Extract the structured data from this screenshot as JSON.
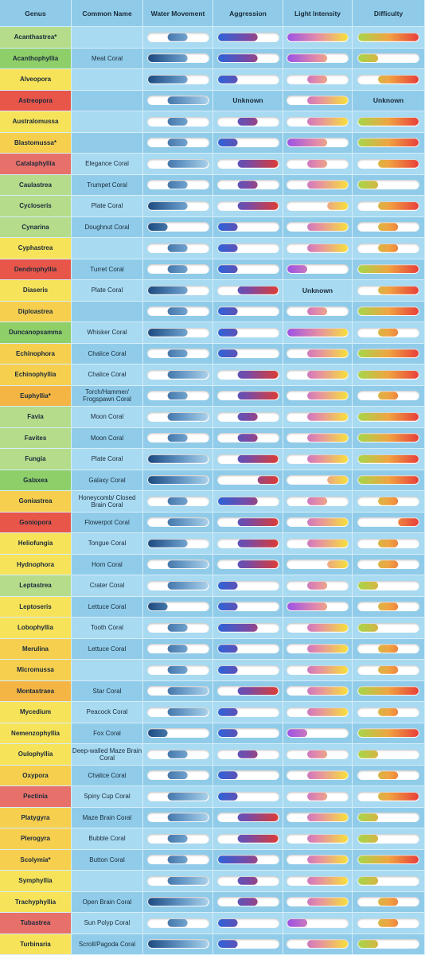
{
  "table": {
    "columns": [
      "Genus",
      "Common Name",
      "Water Movement",
      "Aggression",
      "Light Intensity",
      "Difficulty"
    ],
    "rows": [
      {
        "genus": "Acanthastrea*",
        "color": "#b5dc8a",
        "water": [
          33,
          66
        ],
        "aggression": [
          0,
          66
        ],
        "light": [
          0,
          100
        ],
        "difficulty": [
          0,
          100
        ]
      },
      {
        "genus": "Acanthophyllia",
        "color": "#8fcf6a",
        "common": "Meat Coral",
        "water": [
          0,
          66
        ],
        "aggression": [
          0,
          66
        ],
        "light": [
          0,
          66
        ],
        "difficulty": [
          0,
          33
        ]
      },
      {
        "genus": "Alveopora",
        "color": "#f7e35a",
        "water": [
          0,
          66
        ],
        "aggression": [
          0,
          33
        ],
        "light": [
          33,
          66
        ],
        "difficulty": [
          33,
          100
        ]
      },
      {
        "genus": "Astreopora",
        "color": "#e8564a",
        "water": [
          33,
          100
        ],
        "aggression": "Unknown",
        "light": [
          33,
          100
        ],
        "difficulty": "Unknown"
      },
      {
        "genus": "Australomussa",
        "color": "#f7e35a",
        "water": [
          33,
          66
        ],
        "aggression": [
          33,
          66
        ],
        "light": [
          33,
          100
        ],
        "difficulty": [
          0,
          100
        ]
      },
      {
        "genus": "Blastomussa*",
        "color": "#f6cf4f",
        "water": [
          33,
          66
        ],
        "aggression": [
          0,
          33
        ],
        "light": [
          0,
          66
        ],
        "difficulty": [
          0,
          100
        ]
      },
      {
        "genus": "Catalaphyllia",
        "color": "#e8706a",
        "common": "Elegance Coral",
        "water": [
          33,
          100
        ],
        "aggression": [
          33,
          100
        ],
        "light": [
          33,
          66
        ],
        "difficulty": [
          33,
          100
        ]
      },
      {
        "genus": "Caulastrea",
        "color": "#b5dc8a",
        "common": "Trumpet Coral",
        "water": [
          33,
          66
        ],
        "aggression": [
          33,
          66
        ],
        "light": [
          33,
          100
        ],
        "difficulty": [
          0,
          33
        ]
      },
      {
        "genus": "Cycloseris",
        "color": "#b5dc8a",
        "common": "Plate Coral",
        "water": [
          0,
          66
        ],
        "aggression": [
          33,
          100
        ],
        "light": [
          66,
          100
        ],
        "difficulty": [
          33,
          100
        ]
      },
      {
        "genus": "Cynarina",
        "color": "#b5dc8a",
        "common": "Doughnut Coral",
        "water": [
          0,
          33
        ],
        "aggression": [
          0,
          33
        ],
        "light": [
          33,
          100
        ],
        "difficulty": [
          33,
          66
        ]
      },
      {
        "genus": "Cyphastrea",
        "color": "#f7e35a",
        "water": [
          33,
          66
        ],
        "aggression": [
          0,
          33
        ],
        "light": [
          33,
          100
        ],
        "difficulty": [
          33,
          66
        ]
      },
      {
        "genus": "Dendrophyllia",
        "color": "#e8564a",
        "common": "Turret Coral",
        "water": [
          33,
          66
        ],
        "aggression": [
          0,
          33
        ],
        "light": [
          0,
          33
        ],
        "difficulty": [
          0,
          100
        ]
      },
      {
        "genus": "Diaseris",
        "color": "#f7e35a",
        "common": "Plate Coral",
        "water": [
          0,
          66
        ],
        "aggression": [
          33,
          100
        ],
        "light": "Unknown",
        "difficulty": [
          33,
          100
        ]
      },
      {
        "genus": "Diploastrea",
        "color": "#f6cf4f",
        "water": [
          33,
          66
        ],
        "aggression": [
          0,
          33
        ],
        "light": [
          33,
          66
        ],
        "difficulty": [
          0,
          100
        ]
      },
      {
        "genus": "Duncanopsamma",
        "color": "#8fcf6a",
        "common": "Whisker Coral",
        "water": [
          0,
          66
        ],
        "aggression": [
          0,
          33
        ],
        "light": [
          0,
          100
        ],
        "difficulty": [
          33,
          66
        ]
      },
      {
        "genus": "Echinophora",
        "color": "#f6cf4f",
        "common": "Chalice Coral",
        "water": [
          33,
          66
        ],
        "aggression": [
          0,
          33
        ],
        "light": [
          33,
          100
        ],
        "difficulty": [
          0,
          100
        ]
      },
      {
        "genus": "Echinophyllia",
        "color": "#f6cf4f",
        "common": "Chalice Coral",
        "water": [
          33,
          100
        ],
        "aggression": [
          33,
          100
        ],
        "light": [
          33,
          100
        ],
        "difficulty": [
          0,
          100
        ]
      },
      {
        "genus": "Euphyllia*",
        "color": "#f4b545",
        "common": "Torch/Hammer/ Frogspawn Coral",
        "water": [
          33,
          66
        ],
        "aggression": [
          33,
          100
        ],
        "light": [
          33,
          100
        ],
        "difficulty": [
          33,
          66
        ]
      },
      {
        "genus": "Favia",
        "color": "#b5dc8a",
        "common": "Moon Coral",
        "water": [
          33,
          100
        ],
        "aggression": [
          33,
          66
        ],
        "light": [
          33,
          100
        ],
        "difficulty": [
          0,
          100
        ]
      },
      {
        "genus": "Favites",
        "color": "#b5dc8a",
        "common": "Moon Coral",
        "water": [
          33,
          66
        ],
        "aggression": [
          33,
          66
        ],
        "light": [
          33,
          100
        ],
        "difficulty": [
          0,
          100
        ]
      },
      {
        "genus": "Fungia",
        "color": "#b5dc8a",
        "common": "Plate Coral",
        "water": [
          0,
          100
        ],
        "aggression": [
          33,
          100
        ],
        "light": [
          33,
          100
        ],
        "difficulty": [
          0,
          100
        ]
      },
      {
        "genus": "Galaxea",
        "color": "#8fcf6a",
        "common": "Galaxy Coral",
        "water": [
          0,
          100
        ],
        "aggression": [
          66,
          100
        ],
        "light": [
          66,
          100
        ],
        "difficulty": [
          0,
          100
        ]
      },
      {
        "genus": "Goniastrea",
        "color": "#f6cf4f",
        "common": "Honeycomb/ Closed Brain Coral",
        "water": [
          33,
          66
        ],
        "aggression": [
          0,
          66
        ],
        "light": [
          33,
          66
        ],
        "difficulty": [
          33,
          66
        ]
      },
      {
        "genus": "Goniopora",
        "color": "#e8564a",
        "common": "Flowerpot Coral",
        "water": [
          33,
          100
        ],
        "aggression": [
          33,
          100
        ],
        "light": [
          33,
          100
        ],
        "difficulty": [
          66,
          100
        ]
      },
      {
        "genus": "Heliofungia",
        "color": "#f7e35a",
        "common": "Tongue Coral",
        "water": [
          0,
          66
        ],
        "aggression": [
          33,
          100
        ],
        "light": [
          33,
          100
        ],
        "difficulty": [
          33,
          66
        ]
      },
      {
        "genus": "Hydnophora",
        "color": "#f7e35a",
        "common": "Horn Coral",
        "water": [
          33,
          100
        ],
        "aggression": [
          33,
          100
        ],
        "light": [
          66,
          100
        ],
        "difficulty": [
          33,
          66
        ]
      },
      {
        "genus": "Leptastrea",
        "color": "#b5dc8a",
        "common": "Crater Coral",
        "water": [
          33,
          100
        ],
        "aggression": [
          0,
          33
        ],
        "light": [
          33,
          66
        ],
        "difficulty": [
          0,
          33
        ]
      },
      {
        "genus": "Leptoseris",
        "color": "#f7e35a",
        "common": "Lettuce Coral",
        "water": [
          0,
          33
        ],
        "aggression": [
          0,
          33
        ],
        "light": [
          0,
          66
        ],
        "difficulty": [
          33,
          66
        ]
      },
      {
        "genus": "Lobophyllia",
        "color": "#f7e35a",
        "common": "Tooth Coral",
        "water": [
          33,
          66
        ],
        "aggression": [
          0,
          66
        ],
        "light": [
          33,
          100
        ],
        "difficulty": [
          0,
          33
        ]
      },
      {
        "genus": "Merulina",
        "color": "#f6cf4f",
        "common": "Lettuce Coral",
        "water": [
          33,
          66
        ],
        "aggression": [
          0,
          33
        ],
        "light": [
          33,
          100
        ],
        "difficulty": [
          33,
          66
        ]
      },
      {
        "genus": "Micromussa",
        "color": "#f6cf4f",
        "water": [
          33,
          66
        ],
        "aggression": [
          0,
          33
        ],
        "light": [
          33,
          100
        ],
        "difficulty": [
          33,
          66
        ]
      },
      {
        "genus": "Montastraea",
        "color": "#f4b545",
        "common": "Star Coral",
        "water": [
          33,
          100
        ],
        "aggression": [
          33,
          100
        ],
        "light": [
          33,
          100
        ],
        "difficulty": [
          0,
          100
        ]
      },
      {
        "genus": "Mycedium",
        "color": "#f7e35a",
        "common": "Peacock Coral",
        "water": [
          33,
          100
        ],
        "aggression": [
          0,
          33
        ],
        "light": [
          33,
          100
        ],
        "difficulty": [
          33,
          66
        ]
      },
      {
        "genus": "Nemenzophyllia",
        "color": "#f7e35a",
        "common": "Fox Coral",
        "water": [
          0,
          33
        ],
        "aggression": [
          0,
          33
        ],
        "light": [
          0,
          33
        ],
        "difficulty": [
          0,
          100
        ]
      },
      {
        "genus": "Oulophyllia",
        "color": "#f7e35a",
        "common": "Deep-walled Maze Brain Coral",
        "water": [
          33,
          66
        ],
        "aggression": [
          33,
          66
        ],
        "light": [
          33,
          66
        ],
        "difficulty": [
          0,
          33
        ]
      },
      {
        "genus": "Oxypora",
        "color": "#f6cf4f",
        "common": "Chalice Coral",
        "water": [
          33,
          66
        ],
        "aggression": [
          0,
          33
        ],
        "light": [
          33,
          100
        ],
        "difficulty": [
          33,
          66
        ]
      },
      {
        "genus": "Pectinia",
        "color": "#e8706a",
        "common": "Spiny Cup Coral",
        "water": [
          33,
          100
        ],
        "aggression": [
          0,
          33
        ],
        "light": [
          33,
          66
        ],
        "difficulty": [
          33,
          100
        ]
      },
      {
        "genus": "Platygyra",
        "color": "#f6cf4f",
        "common": "Maze Brain Coral",
        "water": [
          33,
          100
        ],
        "aggression": [
          33,
          100
        ],
        "light": [
          33,
          100
        ],
        "difficulty": [
          0,
          33
        ]
      },
      {
        "genus": "Plerogyra",
        "color": "#f6cf4f",
        "common": "Bubble Coral",
        "water": [
          33,
          66
        ],
        "aggression": [
          33,
          100
        ],
        "light": [
          33,
          100
        ],
        "difficulty": [
          0,
          33
        ]
      },
      {
        "genus": "Scolymia*",
        "color": "#f6cf4f",
        "common": "Button Coral",
        "water": [
          33,
          66
        ],
        "aggression": [
          0,
          66
        ],
        "light": [
          33,
          100
        ],
        "difficulty": [
          0,
          100
        ]
      },
      {
        "genus": "Symphyllia",
        "color": "#f7e35a",
        "water": [
          33,
          100
        ],
        "aggression": [
          33,
          66
        ],
        "light": [
          33,
          100
        ],
        "difficulty": [
          0,
          33
        ]
      },
      {
        "genus": "Trachyphyllia",
        "color": "#f7e35a",
        "common": "Open Brain Coral",
        "water": [
          0,
          100
        ],
        "aggression": [
          33,
          66
        ],
        "light": [
          33,
          100
        ],
        "difficulty": [
          33,
          66
        ]
      },
      {
        "genus": "Tubastrea",
        "color": "#e8706a",
        "common": "Sun Polyp Coral",
        "water": [
          33,
          66
        ],
        "aggression": [
          0,
          33
        ],
        "light": [
          0,
          33
        ],
        "difficulty": [
          33,
          66
        ]
      },
      {
        "genus": "Turbinaria",
        "color": "#f7e35a",
        "common": "Scroll/Pagoda Coral",
        "water": [
          0,
          100
        ],
        "aggression": [
          0,
          33
        ],
        "light": [
          33,
          100
        ],
        "difficulty": [
          0,
          33
        ]
      }
    ]
  }
}
